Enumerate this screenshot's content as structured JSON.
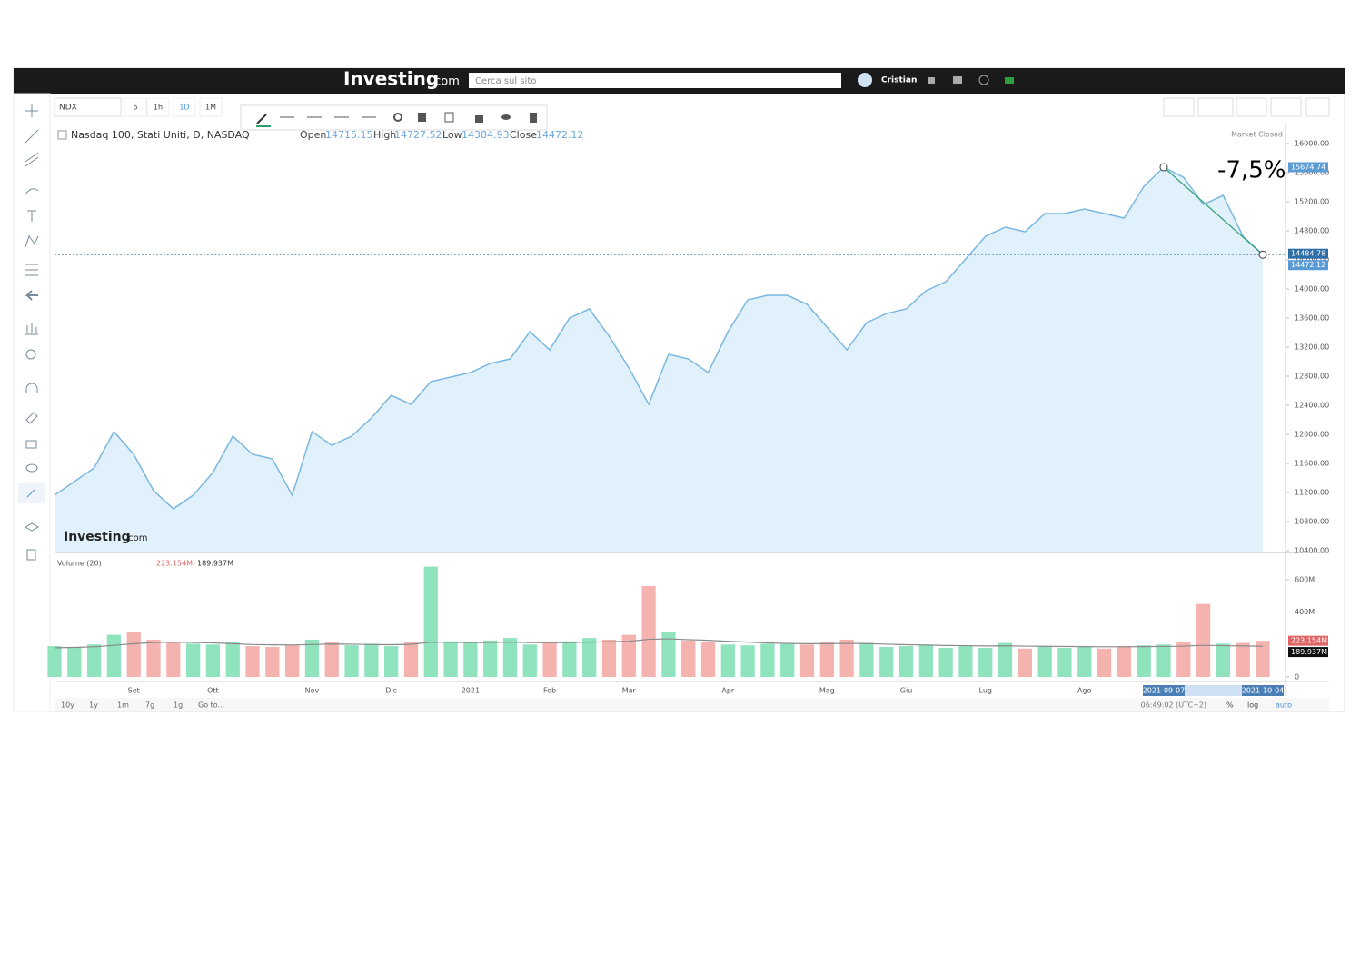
{
  "header": {
    "logo": "Investing",
    "logo_suffix": ".com",
    "search_placeholder": "Cerca sul sito",
    "user": "Cristian"
  },
  "toolbar": {
    "symbol": "NDX",
    "intervals": [
      "5",
      "1h",
      "1D",
      "1M"
    ]
  },
  "legend": {
    "name": "Nasdaq 100, Stati Uniti, D, NASDAQ",
    "open_label": "Open",
    "open": "14715.15",
    "high_label": "High",
    "high": "14727.52",
    "low_label": "Low",
    "low": "14384.93",
    "close_label": "Close",
    "close": "14472.12",
    "status": "Market Closed"
  },
  "footer": {
    "ranges": [
      "10y",
      "1y",
      "1m",
      "7g",
      "1g",
      "Go to..."
    ],
    "time": "06:49:02 (UTC+2)",
    "percent": "%",
    "log": "log",
    "auto": "auto"
  },
  "chart_data": [
    {
      "type": "line",
      "categories": [
        null,
        null,
        null,
        null,
        "Set",
        null,
        null,
        null,
        "Ott",
        null,
        null,
        null,
        null,
        "Nov",
        null,
        null,
        null,
        "Dic",
        null,
        null,
        null,
        "2021",
        null,
        null,
        null,
        "Feb",
        null,
        null,
        null,
        "Mar",
        null,
        null,
        null,
        null,
        "Apr",
        null,
        null,
        null,
        null,
        "Mag",
        null,
        null,
        null,
        "Giu",
        null,
        null,
        null,
        "Lug",
        null,
        null,
        null,
        null,
        "Ago",
        null,
        null,
        null,
        null,
        null,
        null,
        null,
        null,
        null
      ],
      "series": [
        {
          "name": "NDX",
          "color": "#7ab7e0",
          "values": [
            11162,
            11350,
            11537,
            12037,
            11725,
            11225,
            10975,
            11162,
            11475,
            11975,
            11725,
            11662,
            11162,
            12037,
            11850,
            11975,
            12225,
            12537,
            12412,
            12725,
            12787,
            12850,
            12975,
            13037,
            13412,
            13162,
            13600,
            13725,
            13350,
            12912,
            12412,
            13100,
            13037,
            12850,
            13412,
            13850,
            13912,
            13912,
            13787,
            13475,
            13162,
            13537,
            13662,
            13725,
            13975,
            14100,
            14412,
            14725,
            14850,
            14787,
            15037,
            15037,
            15100,
            15037,
            14975,
            15412,
            15674.74,
            15537,
            15162,
            15287,
            14725,
            14472.12
          ]
        }
      ],
      "area_color": "#e1f1fb",
      "ylim": [
        10375,
        16225
      ],
      "yticks": [
        {
          "value": 10400,
          "label": "10400.00"
        },
        {
          "value": 10800,
          "label": "10800.00"
        },
        {
          "value": 11200,
          "label": "11200.00"
        },
        {
          "value": 11600,
          "label": "11600.00"
        },
        {
          "value": 12000,
          "label": "12000.00"
        },
        {
          "value": 12400,
          "label": "12400.00"
        },
        {
          "value": 12800,
          "label": "12800.00"
        },
        {
          "value": 13200,
          "label": "13200.00"
        },
        {
          "value": 13600,
          "label": "13600.00"
        },
        {
          "value": 14000,
          "label": "14000.00"
        },
        {
          "value": 14400,
          "label": "14400.00"
        },
        {
          "value": 14800,
          "label": "14800.00"
        },
        {
          "value": 15200,
          "label": "15200.00"
        },
        {
          "value": 15600,
          "label": "15600.00"
        },
        {
          "value": 16000,
          "label": "16000.00"
        }
      ],
      "annotation": {
        "text": "-7,5%",
        "start": {
          "date": "2021-09-07",
          "value": 15674.74
        },
        "end": {
          "date": "2021-10-04",
          "value": 14472.12
        }
      },
      "tags": [
        14484.78
      ]
    },
    {
      "type": "bar",
      "title": "Volume (20)",
      "up_color": "#8fe3bd",
      "down_color": "#f5b3b0",
      "values": [
        190000000,
        185000000,
        200000000,
        260000000,
        280000000,
        230000000,
        215000000,
        205000000,
        200000000,
        215000000,
        190000000,
        185000000,
        200000000,
        230000000,
        215000000,
        195000000,
        205000000,
        190000000,
        215000000,
        680000000,
        220000000,
        210000000,
        225000000,
        240000000,
        200000000,
        215000000,
        220000000,
        240000000,
        230000000,
        260000000,
        560000000,
        280000000,
        225000000,
        215000000,
        200000000,
        195000000,
        205000000,
        210000000,
        200000000,
        215000000,
        230000000,
        210000000,
        185000000,
        190000000,
        200000000,
        180000000,
        190000000,
        180000000,
        210000000,
        175000000,
        190000000,
        180000000,
        185000000,
        175000000,
        190000000,
        195000000,
        200000000,
        215000000,
        450000000,
        205000000,
        210000000,
        223154000
      ],
      "ma": {
        "color": "#8a8a8a",
        "values": [
          180000000,
          182000000,
          186000000,
          195000000,
          205000000,
          212000000,
          215000000,
          213000000,
          210000000,
          205000000,
          200000000,
          198000000,
          197000000,
          200000000,
          203000000,
          202000000,
          200000000,
          199000000,
          201000000,
          215000000,
          214000000,
          212000000,
          213000000,
          215000000,
          212000000,
          211000000,
          212000000,
          215000000,
          217000000,
          220000000,
          232000000,
          235000000,
          230000000,
          226000000,
          220000000,
          215000000,
          210000000,
          207000000,
          205000000,
          205000000,
          207000000,
          206000000,
          202000000,
          199000000,
          197000000,
          194000000,
          193000000,
          191000000,
          192000000,
          190000000,
          189000000,
          188000000,
          187000000,
          186000000,
          186000000,
          187000000,
          188000000,
          190000000,
          195000000,
          193000000,
          191000000,
          189937000
        ]
      },
      "last_value_label": "223.154M",
      "last_ma_label": "189.937M",
      "ylim": [
        0,
        745000000
      ],
      "yticks": [
        0,
        {
          "value": 400000000,
          "label": "400M"
        },
        {
          "value": 600000000,
          "label": "600M"
        }
      ]
    }
  ]
}
